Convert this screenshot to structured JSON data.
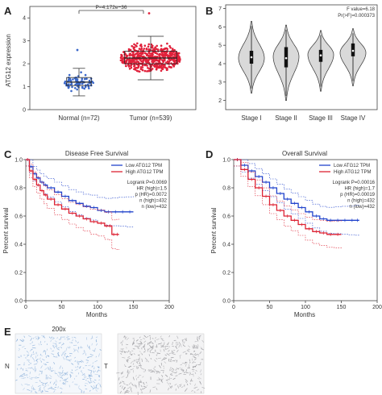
{
  "panels": {
    "A": "A",
    "B": "B",
    "C": "C",
    "D": "D",
    "E": "E"
  },
  "chart_data": [
    {
      "panel": "A",
      "type": "scatter",
      "ylabel": "ATG12 expression",
      "ylim": [
        0,
        4.5
      ],
      "yticks": [
        "0",
        "1",
        "2",
        "3",
        "4"
      ],
      "annotation": "P=4.172e−36",
      "categories": [
        "Normal (n=72)",
        "Tumor (n=539)"
      ],
      "groups": [
        {
          "n": 72,
          "median": 1.2,
          "q1": 1.05,
          "q3": 1.4,
          "whisker_low": 0.6,
          "whisker_high": 1.8,
          "min": 0.5,
          "max": 2.6,
          "color": "#3a67c9"
        },
        {
          "n": 539,
          "median": 2.25,
          "q1": 2.0,
          "q3": 2.55,
          "whisker_low": 1.3,
          "whisker_high": 3.2,
          "min": 1.0,
          "max": 4.2,
          "color": "#e0203a"
        }
      ]
    },
    {
      "panel": "B",
      "type": "violin",
      "categories": [
        "Stage I",
        "Stage II",
        "Stage III",
        "Stage IV"
      ],
      "ylim": [
        1.5,
        7.2
      ],
      "yticks": [
        "2",
        "3",
        "4",
        "5",
        "6",
        "7"
      ],
      "groups": [
        {
          "min": 2.4,
          "q1": 4.0,
          "median": 4.35,
          "q3": 4.7,
          "max": 6.3,
          "mode": 4.3
        },
        {
          "min": 2.0,
          "q1": 3.8,
          "median": 4.3,
          "q3": 4.9,
          "max": 6.1,
          "mode": 4.4
        },
        {
          "min": 2.5,
          "q1": 4.1,
          "median": 4.45,
          "q3": 4.75,
          "max": 5.8,
          "mode": 4.5
        },
        {
          "min": 2.8,
          "q1": 4.4,
          "median": 4.7,
          "q3": 5.1,
          "max": 5.9,
          "mode": 4.6
        }
      ],
      "stat_lines": [
        "F value=6.18",
        "Pr(>F)=0.000373"
      ]
    },
    {
      "panel": "C",
      "type": "line",
      "title": "Disease Free Survival",
      "xlabel": "Months",
      "ylabel": "Percent survival",
      "xlim": [
        0,
        200
      ],
      "ylim": [
        0,
        1.0
      ],
      "xticks": [
        "0",
        "50",
        "100",
        "150",
        "200"
      ],
      "yticks": [
        "0.0",
        "0.2",
        "0.4",
        "0.6",
        "0.8",
        "1.0"
      ],
      "legend": [
        "Low ATG12 TPM",
        "High ATG12 TPM"
      ],
      "stats": [
        "Logrank P=0.0069",
        "HR (high)=1.5",
        "p (HR)=0.0072",
        "n (high)=432",
        "n (low)=432"
      ],
      "series": [
        {
          "name": "Low ATG12 TPM",
          "color": "#2244cc",
          "x": [
            0,
            5,
            10,
            15,
            20,
            25,
            30,
            40,
            50,
            60,
            70,
            80,
            90,
            100,
            110,
            120,
            130,
            140,
            150
          ],
          "y": [
            1.0,
            0.95,
            0.9,
            0.87,
            0.84,
            0.82,
            0.8,
            0.77,
            0.74,
            0.71,
            0.69,
            0.67,
            0.66,
            0.64,
            0.63,
            0.63,
            0.63,
            0.63,
            0.63
          ]
        },
        {
          "name": "High ATG12 TPM",
          "color": "#dd2233",
          "x": [
            0,
            5,
            10,
            15,
            20,
            25,
            30,
            40,
            50,
            60,
            70,
            80,
            90,
            100,
            110,
            115,
            120,
            125,
            130
          ],
          "y": [
            1.0,
            0.92,
            0.86,
            0.82,
            0.78,
            0.75,
            0.72,
            0.68,
            0.65,
            0.62,
            0.6,
            0.58,
            0.56,
            0.55,
            0.53,
            0.53,
            0.47,
            0.47,
            0.47
          ]
        }
      ]
    },
    {
      "panel": "D",
      "type": "line",
      "title": "Overall Survival",
      "xlabel": "Months",
      "ylabel": "Percent survival",
      "xlim": [
        0,
        200
      ],
      "ylim": [
        0,
        1.0
      ],
      "xticks": [
        "0",
        "50",
        "100",
        "150",
        "200"
      ],
      "yticks": [
        "0.0",
        "0.2",
        "0.4",
        "0.6",
        "0.8",
        "1.0"
      ],
      "legend": [
        "Low ATG12 TPM",
        "High ATG12 TPM"
      ],
      "stats": [
        "Logrank P=0.00016",
        "HR (high)=1.7",
        "p (HR)=0.00019",
        "n (high)=432",
        "n (low)=432"
      ],
      "series": [
        {
          "name": "Low ATG12 TPM",
          "color": "#2244cc",
          "x": [
            0,
            10,
            20,
            30,
            40,
            50,
            60,
            70,
            80,
            90,
            100,
            110,
            120,
            130,
            140,
            150,
            160,
            170,
            175
          ],
          "y": [
            1.0,
            0.96,
            0.92,
            0.88,
            0.84,
            0.8,
            0.76,
            0.72,
            0.69,
            0.66,
            0.63,
            0.6,
            0.58,
            0.57,
            0.57,
            0.57,
            0.57,
            0.57,
            0.57
          ]
        },
        {
          "name": "High ATG12 TPM",
          "color": "#dd2233",
          "x": [
            0,
            10,
            20,
            30,
            40,
            50,
            60,
            70,
            80,
            90,
            100,
            110,
            120,
            130,
            140,
            150
          ],
          "y": [
            1.0,
            0.93,
            0.86,
            0.8,
            0.74,
            0.68,
            0.64,
            0.6,
            0.57,
            0.54,
            0.51,
            0.49,
            0.48,
            0.47,
            0.47,
            0.47
          ]
        }
      ]
    }
  ],
  "panel_e": {
    "magnification": "200x",
    "row_labels": [
      "N",
      "T"
    ],
    "colors": {
      "normal_stain": "#7fa8d6",
      "tumor_stain": "#8f8f94"
    }
  }
}
